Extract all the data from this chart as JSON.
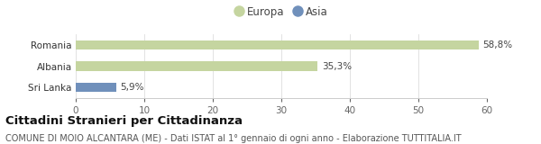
{
  "categories": [
    "Romania",
    "Albania",
    "Sri Lanka"
  ],
  "values": [
    58.8,
    35.3,
    5.9
  ],
  "colors": [
    "#c5d5a0",
    "#c5d5a0",
    "#7090bb"
  ],
  "bar_labels": [
    "58,8%",
    "35,3%",
    "5,9%"
  ],
  "xlim": [
    0,
    60
  ],
  "xticks": [
    0,
    10,
    20,
    30,
    40,
    50,
    60
  ],
  "legend_items": [
    {
      "label": "Europa",
      "color": "#c5d5a0"
    },
    {
      "label": "Asia",
      "color": "#7090bb"
    }
  ],
  "title": "Cittadini Stranieri per Cittadinanza",
  "subtitle": "COMUNE DI MOIO ALCANTARA (ME) - Dati ISTAT al 1° gennaio di ogni anno - Elaborazione TUTTITALIA.IT",
  "background_color": "#ffffff",
  "bar_height": 0.45,
  "label_fontsize": 7.5,
  "tick_fontsize": 7.5,
  "title_fontsize": 9.5,
  "subtitle_fontsize": 7.0
}
